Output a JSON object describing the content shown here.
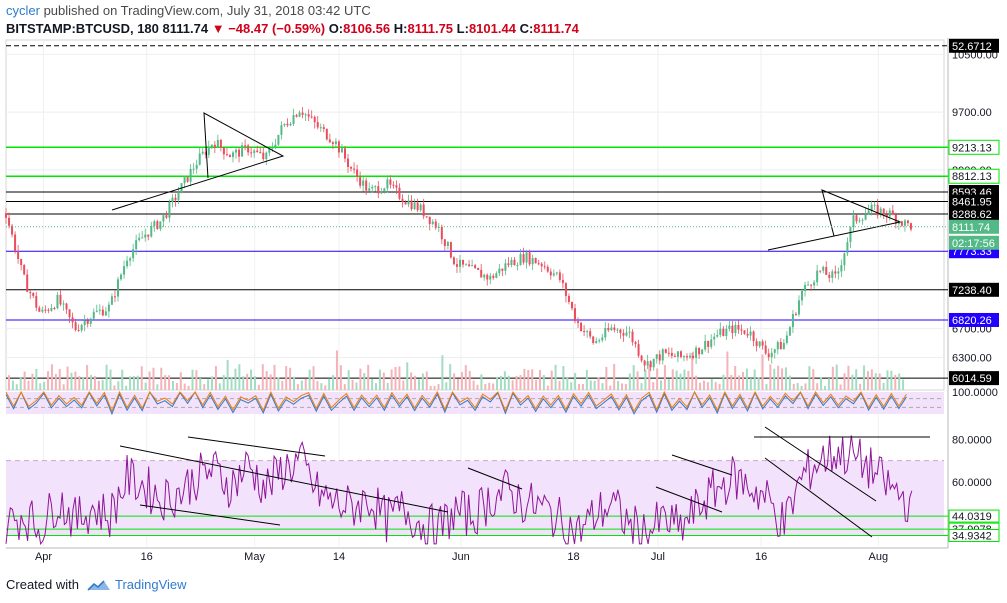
{
  "header": {
    "publisher": "cycler",
    "published_text": "published on TradingView.com, July 31, 2018 03:42 UTC",
    "symbol": "BITSTAMP:BTCUSD, 180",
    "last": "8111.74",
    "change": "−48.47 (−0.59%)",
    "open_label": "O:",
    "open": "8106.56",
    "high_label": "H:",
    "high": "8111.75",
    "low_label": "L:",
    "low": "8101.44",
    "close_label": "C:",
    "close": "8111.74"
  },
  "footer": {
    "created_with": "Created with",
    "brand": "TradingView"
  },
  "colors": {
    "up": "#53b987",
    "down": "#eb4d5c",
    "rsi": "#8e1599",
    "rsi_band": "#f3e2fb",
    "green_line": "#00e600",
    "blue_label": "#2200ff",
    "axis_text": "#131722"
  },
  "chart_data": [
    {
      "type": "candlestick",
      "title": "",
      "xlabel": "",
      "ylabel": "",
      "ylim": [
        5850,
        10700
      ],
      "x_ticks": [
        "Apr",
        "16",
        "May",
        "14",
        "Jun",
        "18",
        "Jul",
        "16",
        "Aug"
      ],
      "y_ticks": [
        10500,
        9700,
        8900,
        6700,
        6300
      ],
      "y_tick_labels": [
        "10500.00",
        "9700.00",
        "8900.00",
        "6700.00",
        "6300.00"
      ],
      "price_levels": [
        {
          "value": 10620,
          "label": "52.6712",
          "style": "dashed",
          "color": "#000000"
        },
        {
          "value": 9213.13,
          "label": "9213.13",
          "color": "#00e600"
        },
        {
          "value": 8812.13,
          "label": "8812.13",
          "color": "#00e600"
        },
        {
          "value": 8593.46,
          "label": "8593.46",
          "color": "#000000"
        },
        {
          "value": 8461.95,
          "label": "8461.95",
          "color": "#000000"
        },
        {
          "value": 8288.62,
          "label": "8288.62",
          "color": "#000000"
        },
        {
          "value": 7773.33,
          "label": "7773.33",
          "color": "#2200ff"
        },
        {
          "value": 7238.4,
          "label": "7238.40",
          "color": "#000000"
        },
        {
          "value": 6820.26,
          "label": "6820.26",
          "color": "#2200ff"
        },
        {
          "value": 6014.59,
          "label": "6014.59",
          "color": "#000000"
        }
      ],
      "last_price": {
        "value": 8111.74,
        "label": "8111.74",
        "color": "#53b987"
      },
      "countdown": "02:17:56",
      "series": [
        {
          "name": "BTCUSD close (approx.)",
          "points": [
            [
              0,
              8300
            ],
            [
              2,
              7400
            ],
            [
              4,
              6900
            ],
            [
              6,
              7100
            ],
            [
              8,
              6700
            ],
            [
              10,
              6900
            ],
            [
              12,
              7000
            ],
            [
              14,
              7700
            ],
            [
              16,
              8000
            ],
            [
              18,
              8200
            ],
            [
              20,
              8600
            ],
            [
              22,
              9000
            ],
            [
              24,
              9300
            ],
            [
              26,
              9100
            ],
            [
              28,
              9200
            ],
            [
              30,
              9050
            ],
            [
              32,
              9500
            ],
            [
              34,
              9750
            ],
            [
              36,
              9500
            ],
            [
              38,
              9300
            ],
            [
              40,
              8900
            ],
            [
              42,
              8600
            ],
            [
              44,
              8700
            ],
            [
              46,
              8500
            ],
            [
              48,
              8350
            ],
            [
              50,
              8100
            ],
            [
              52,
              7600
            ],
            [
              54,
              7500
            ],
            [
              56,
              7400
            ],
            [
              58,
              7600
            ],
            [
              60,
              7700
            ],
            [
              62,
              7600
            ],
            [
              64,
              7400
            ],
            [
              66,
              6800
            ],
            [
              68,
              6500
            ],
            [
              70,
              6700
            ],
            [
              72,
              6650
            ],
            [
              74,
              6200
            ],
            [
              76,
              6350
            ],
            [
              78,
              6300
            ],
            [
              80,
              6400
            ],
            [
              82,
              6600
            ],
            [
              84,
              6700
            ],
            [
              86,
              6650
            ],
            [
              88,
              6350
            ],
            [
              90,
              6500
            ],
            [
              92,
              7200
            ],
            [
              94,
              7500
            ],
            [
              96,
              7400
            ],
            [
              98,
              8200
            ],
            [
              100,
              8350
            ],
            [
              102,
              8300
            ],
            [
              104,
              8150
            ],
            [
              105,
              8111.74
            ]
          ]
        }
      ]
    },
    {
      "type": "line",
      "title": "",
      "xlabel": "",
      "ylabel": "",
      "ylim": [
        0,
        100
      ],
      "y_ticks": [
        100
      ],
      "y_tick_labels": [
        "100.0000"
      ],
      "band": [
        30,
        70
      ],
      "series": [
        {
          "name": "Stoch RSI (approx.)",
          "values": [
            80,
            20,
            90,
            10,
            60,
            95,
            15,
            85,
            30,
            70,
            20,
            90,
            40,
            80,
            10,
            85,
            25,
            75,
            15,
            95,
            35,
            65,
            20,
            85,
            45,
            90,
            15,
            80,
            30,
            70,
            20,
            75,
            40,
            85,
            10,
            90,
            25,
            80,
            35,
            65
          ]
        }
      ]
    },
    {
      "type": "line",
      "title": "",
      "xlabel": "",
      "ylabel": "",
      "ylim": [
        30,
        90
      ],
      "y_ticks": [
        80,
        60
      ],
      "y_tick_labels": [
        "80.0000",
        "60.0000"
      ],
      "band": [
        34.9342,
        70
      ],
      "level_labels": [
        {
          "value": 44.0319,
          "label": "44.0319"
        },
        {
          "value": 37.9078,
          "label": "37.9078"
        },
        {
          "value": 34.9342,
          "label": "34.9342"
        }
      ],
      "series": [
        {
          "name": "RSI (approx.)",
          "points": [
            [
              0,
              40
            ],
            [
              2,
              45
            ],
            [
              4,
              38
            ],
            [
              6,
              52
            ],
            [
              8,
              42
            ],
            [
              10,
              48
            ],
            [
              12,
              44
            ],
            [
              14,
              62
            ],
            [
              16,
              58
            ],
            [
              18,
              52
            ],
            [
              20,
              55
            ],
            [
              22,
              62
            ],
            [
              24,
              66
            ],
            [
              26,
              58
            ],
            [
              28,
              68
            ],
            [
              30,
              57
            ],
            [
              32,
              66
            ],
            [
              34,
              70
            ],
            [
              36,
              55
            ],
            [
              38,
              50
            ],
            [
              40,
              48
            ],
            [
              42,
              52
            ],
            [
              44,
              42
            ],
            [
              46,
              48
            ],
            [
              48,
              40
            ],
            [
              50,
              38
            ],
            [
              52,
              46
            ],
            [
              54,
              44
            ],
            [
              56,
              52
            ],
            [
              58,
              56
            ],
            [
              60,
              50
            ],
            [
              62,
              48
            ],
            [
              64,
              42
            ],
            [
              66,
              36
            ],
            [
              68,
              44
            ],
            [
              70,
              50
            ],
            [
              72,
              40
            ],
            [
              74,
              36
            ],
            [
              76,
              42
            ],
            [
              78,
              38
            ],
            [
              80,
              48
            ],
            [
              82,
              56
            ],
            [
              84,
              62
            ],
            [
              86,
              58
            ],
            [
              88,
              52
            ],
            [
              90,
              40
            ],
            [
              92,
              62
            ],
            [
              94,
              70
            ],
            [
              96,
              74
            ],
            [
              98,
              72
            ],
            [
              100,
              66
            ],
            [
              102,
              58
            ],
            [
              104,
              52
            ],
            [
              105,
              44
            ]
          ]
        }
      ],
      "x_ticks": [
        "Apr",
        "16",
        "May",
        "14",
        "Jun",
        "18",
        "Jul",
        "16",
        "Aug"
      ]
    }
  ]
}
